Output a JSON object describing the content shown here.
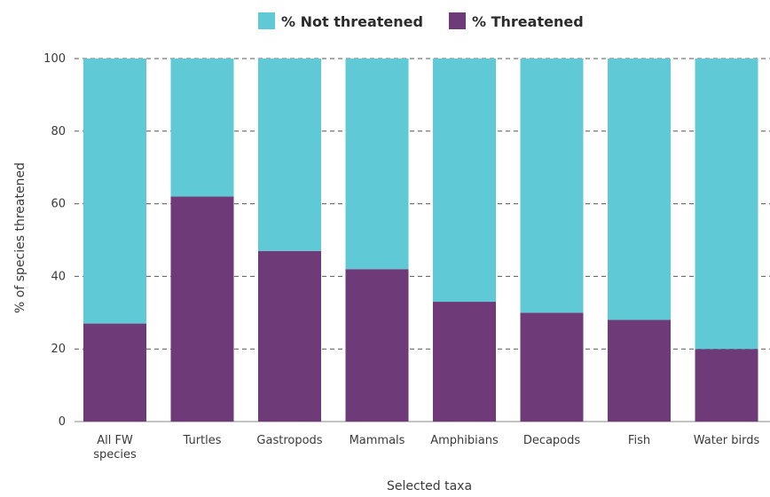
{
  "chart_data": {
    "type": "bar",
    "stacked": true,
    "categories": [
      "All FW species",
      "Turtles",
      "Gastropods",
      "Mammals",
      "Amphibians",
      "Decapods",
      "Fish",
      "Water birds"
    ],
    "category_label_lines": [
      [
        "All FW",
        "species"
      ],
      [
        "Turtles"
      ],
      [
        "Gastropods"
      ],
      [
        "Mammals"
      ],
      [
        "Amphibians"
      ],
      [
        "Decapods"
      ],
      [
        "Fish"
      ],
      [
        "Water birds"
      ]
    ],
    "series": [
      {
        "name": "% Threatened",
        "color": "#6e3b78",
        "values": [
          27,
          62,
          47,
          42,
          33,
          30,
          28,
          20
        ]
      },
      {
        "name": "% Not threatened",
        "color": "#5fc9d6",
        "values": [
          73,
          38,
          53,
          58,
          67,
          70,
          72,
          80
        ]
      }
    ],
    "legend": [
      {
        "name": "% Not threatened",
        "color": "#5fc9d6"
      },
      {
        "name": "% Threatened",
        "color": "#6e3b78"
      }
    ],
    "legend_position": "top",
    "xlabel": "Selected taxa",
    "ylabel": "% of species threatened",
    "ylim": [
      0,
      100
    ],
    "yticks": [
      0,
      20,
      40,
      60,
      80,
      100
    ],
    "grid": "dashed horizontal"
  }
}
